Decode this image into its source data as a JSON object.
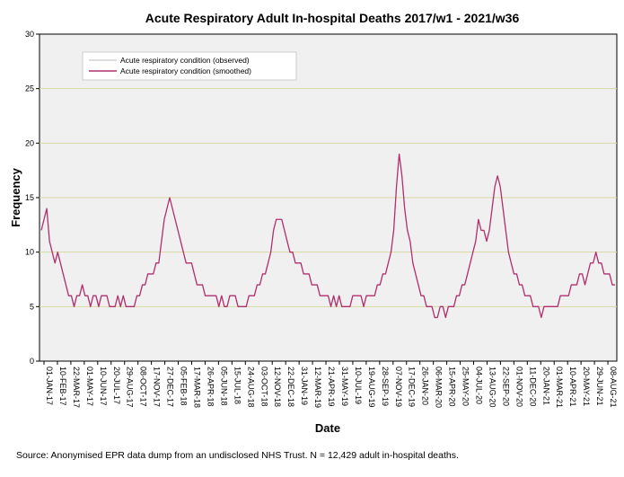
{
  "chart_data": {
    "type": "line",
    "title": "Acute Respiratory Adult In-hospital Deaths 2017/w1 - 2021/w36",
    "xlabel": "Date",
    "ylabel": "Frequency",
    "ylim": [
      0,
      30
    ],
    "yticks": [
      0,
      5,
      10,
      15,
      20,
      25,
      30
    ],
    "grid": true,
    "legend_position": "top-left",
    "x_tick_labels": [
      "01-JAN-17",
      "10-FEB-17",
      "22-MAR-17",
      "01-MAY-17",
      "10-JUN-17",
      "20-JUL-17",
      "29-AUG-17",
      "08-OCT-17",
      "17-NOV-17",
      "27-DEC-17",
      "05-FEB-18",
      "17-MAR-18",
      "26-APR-18",
      "05-JUN-18",
      "15-JUL-18",
      "24-AUG-18",
      "03-OCT-18",
      "12-NOV-18",
      "22-DEC-18",
      "31-JAN-19",
      "12-MAR-19",
      "21-APR-19",
      "31-MAY-19",
      "10-JUL-19",
      "19-AUG-19",
      "28-SEP-19",
      "07-NOV-19",
      "17-DEC-19",
      "26-JAN-20",
      "06-MAR-20",
      "15-APR-20",
      "25-MAY-20",
      "04-JUL-20",
      "13-AUG-20",
      "22-SEP-20",
      "01-NOV-20",
      "11-DEC-20",
      "20-JAN-21",
      "01-MAR-21",
      "10-APR-21",
      "20-MAY-21",
      "29-JUN-21",
      "08-AUG-21"
    ],
    "series": [
      {
        "name": "Acute respiratory condition (observed)",
        "color": "#c8c8c8",
        "style": "thin",
        "values": [
          12,
          13,
          14,
          11,
          10,
          9,
          10,
          9,
          8,
          7,
          6,
          6,
          5,
          6,
          6,
          7,
          6,
          6,
          5,
          6,
          6,
          5,
          6,
          6,
          6,
          5,
          5,
          5,
          6,
          5,
          6,
          5,
          5,
          5,
          5,
          6,
          6,
          7,
          7,
          8,
          8,
          8,
          9,
          9,
          11,
          13,
          14,
          15,
          14,
          13,
          12,
          11,
          10,
          9,
          9,
          9,
          8,
          7,
          7,
          7,
          6,
          6,
          6,
          6,
          6,
          5,
          6,
          5,
          5,
          6,
          6,
          6,
          5,
          5,
          5,
          5,
          6,
          6,
          6,
          7,
          7,
          8,
          8,
          9,
          10,
          12,
          13,
          13,
          13,
          12,
          11,
          10,
          10,
          9,
          9,
          9,
          8,
          8,
          8,
          7,
          7,
          7,
          6,
          6,
          6,
          6,
          5,
          6,
          5,
          6,
          5,
          5,
          5,
          5,
          6,
          6,
          6,
          6,
          5,
          6,
          6,
          6,
          6,
          7,
          7,
          8,
          8,
          9,
          10,
          12,
          16,
          19,
          17,
          14,
          12,
          11,
          9,
          8,
          7,
          6,
          6,
          5,
          5,
          5,
          4,
          4,
          5,
          5,
          4,
          5,
          5,
          5,
          6,
          6,
          7,
          7,
          8,
          9,
          10,
          11,
          13,
          12,
          12,
          11,
          12,
          14,
          16,
          17,
          16,
          14,
          12,
          10,
          9,
          8,
          8,
          7,
          7,
          6,
          6,
          6,
          5,
          5,
          5,
          4,
          5,
          5,
          5,
          5,
          5,
          5,
          6,
          6,
          6,
          6,
          7,
          7,
          7,
          8,
          8,
          7,
          8,
          9,
          9,
          10,
          9,
          9,
          8,
          8,
          8,
          7,
          7
        ]
      },
      {
        "name": "Acute respiratory condition (smoothed)",
        "color": "#b0306e",
        "style": "thick",
        "values": [
          12,
          13,
          14,
          11,
          10,
          9,
          10,
          9,
          8,
          7,
          6,
          6,
          5,
          6,
          6,
          7,
          6,
          6,
          5,
          6,
          6,
          5,
          6,
          6,
          6,
          5,
          5,
          5,
          6,
          5,
          6,
          5,
          5,
          5,
          5,
          6,
          6,
          7,
          7,
          8,
          8,
          8,
          9,
          9,
          11,
          13,
          14,
          15,
          14,
          13,
          12,
          11,
          10,
          9,
          9,
          9,
          8,
          7,
          7,
          7,
          6,
          6,
          6,
          6,
          6,
          5,
          6,
          5,
          5,
          6,
          6,
          6,
          5,
          5,
          5,
          5,
          6,
          6,
          6,
          7,
          7,
          8,
          8,
          9,
          10,
          12,
          13,
          13,
          13,
          12,
          11,
          10,
          10,
          9,
          9,
          9,
          8,
          8,
          8,
          7,
          7,
          7,
          6,
          6,
          6,
          6,
          5,
          6,
          5,
          6,
          5,
          5,
          5,
          5,
          6,
          6,
          6,
          6,
          5,
          6,
          6,
          6,
          6,
          7,
          7,
          8,
          8,
          9,
          10,
          12,
          16,
          19,
          17,
          14,
          12,
          11,
          9,
          8,
          7,
          6,
          6,
          5,
          5,
          5,
          4,
          4,
          5,
          5,
          4,
          5,
          5,
          5,
          6,
          6,
          7,
          7,
          8,
          9,
          10,
          11,
          13,
          12,
          12,
          11,
          12,
          14,
          16,
          17,
          16,
          14,
          12,
          10,
          9,
          8,
          8,
          7,
          7,
          6,
          6,
          6,
          5,
          5,
          5,
          4,
          5,
          5,
          5,
          5,
          5,
          5,
          6,
          6,
          6,
          6,
          7,
          7,
          7,
          8,
          8,
          7,
          8,
          9,
          9,
          10,
          9,
          9,
          8,
          8,
          8,
          7,
          7
        ]
      }
    ]
  },
  "footer": {
    "source_text": "Source: Anonymised EPR data dump from an undisclosed NHS Trust. N = 12,429 adult in-hospital deaths."
  }
}
